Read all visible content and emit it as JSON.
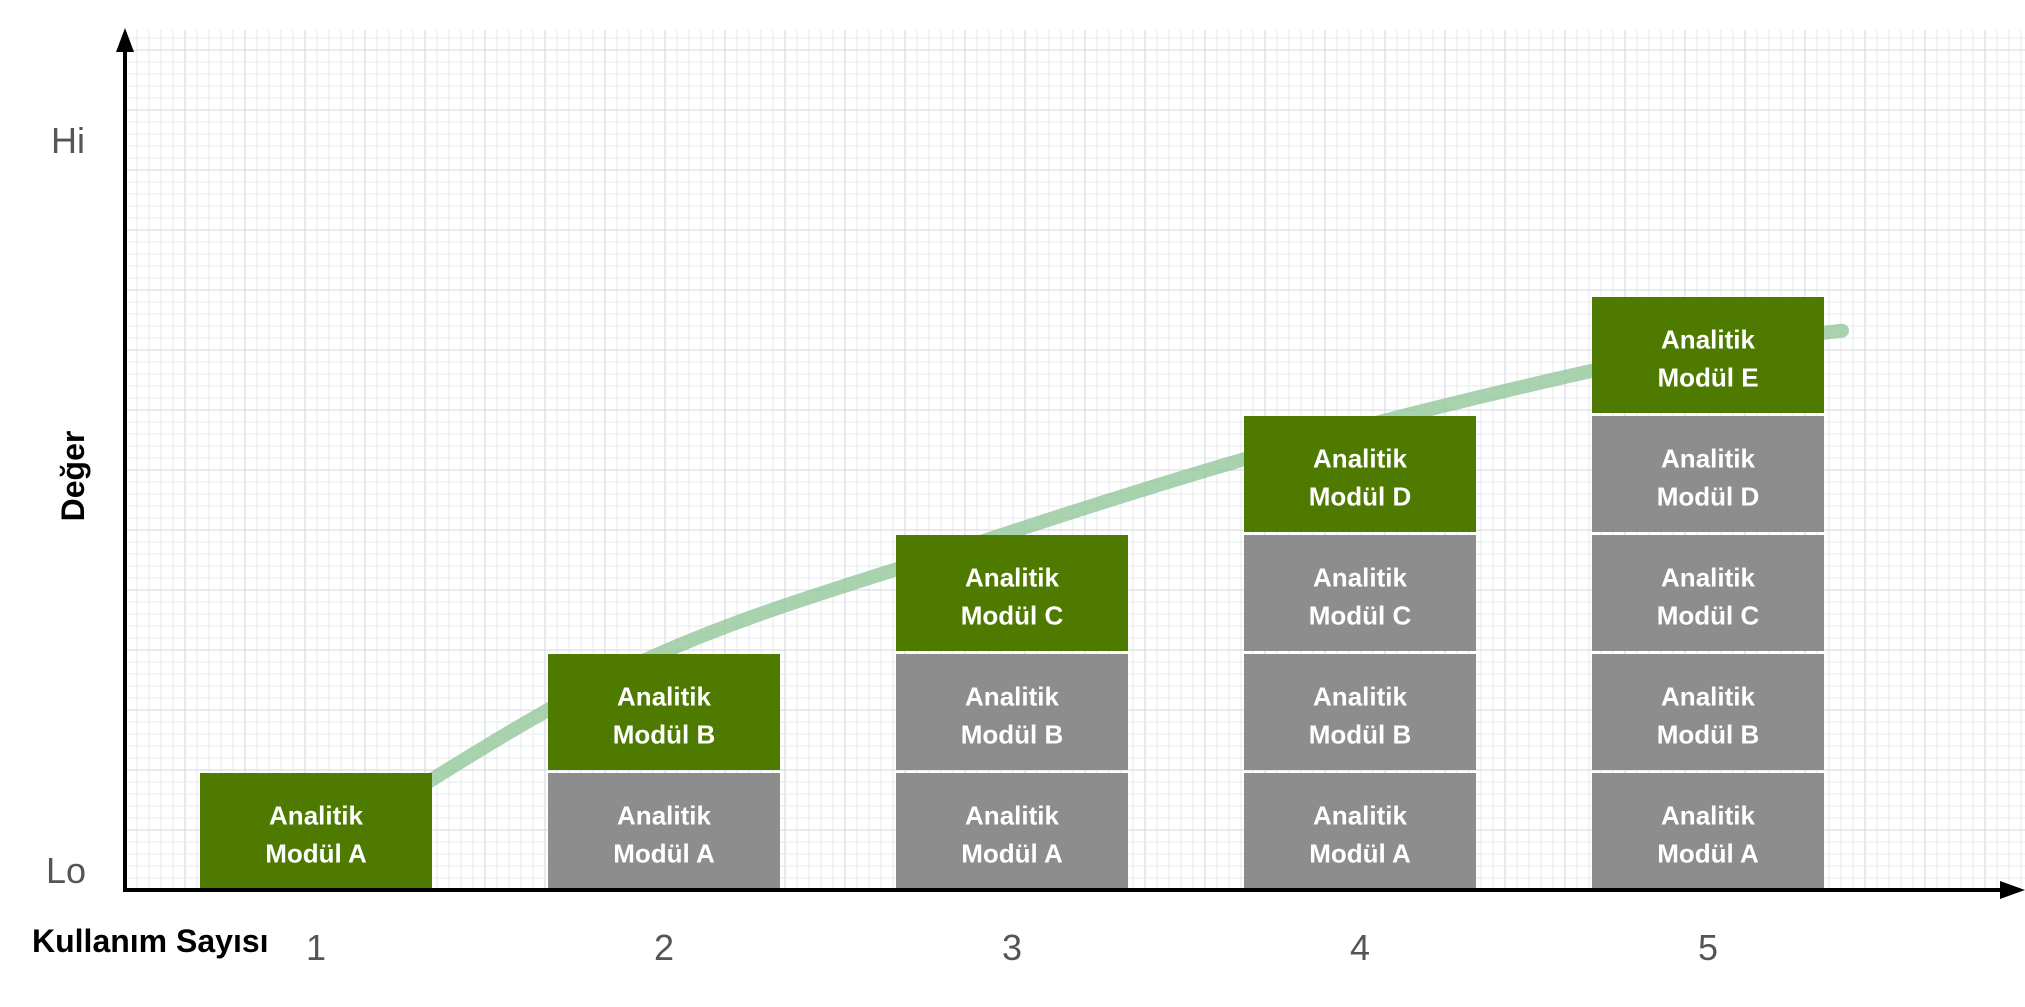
{
  "chart_data": {
    "type": "bar",
    "stacked": true,
    "title": "",
    "xlabel": "Kullanım Sayısı",
    "ylabel": "Değer",
    "categories": [
      "1",
      "2",
      "3",
      "4",
      "5"
    ],
    "y_ticks": {
      "high": "Hi",
      "low": "Lo"
    },
    "grid": true,
    "stacks": [
      [
        "Analitik\nModül A"
      ],
      [
        "Analitik\nModül A",
        "Analitik\nModül B"
      ],
      [
        "Analitik\nModül A",
        "Analitik\nModül B",
        "Analitik\nModül C"
      ],
      [
        "Analitik\nModül A",
        "Analitik\nModül B",
        "Analitik\nModül C",
        "Analitik\nModül D"
      ],
      [
        "Analitik\nModül A",
        "Analitik\nModül B",
        "Analitik\nModül C",
        "Analitik\nModül D",
        "Analitik\nModül E"
      ]
    ],
    "curve": {
      "x": [
        1,
        2,
        3,
        4,
        5,
        5.5
      ],
      "y": [
        0.1,
        1.85,
        2.9,
        3.8,
        4.5,
        4.7
      ]
    },
    "colors": {
      "new_block": "#4f7a00",
      "existing_block": "#8d8d8d",
      "curve": "#8cc394",
      "axis": "#000000"
    }
  }
}
